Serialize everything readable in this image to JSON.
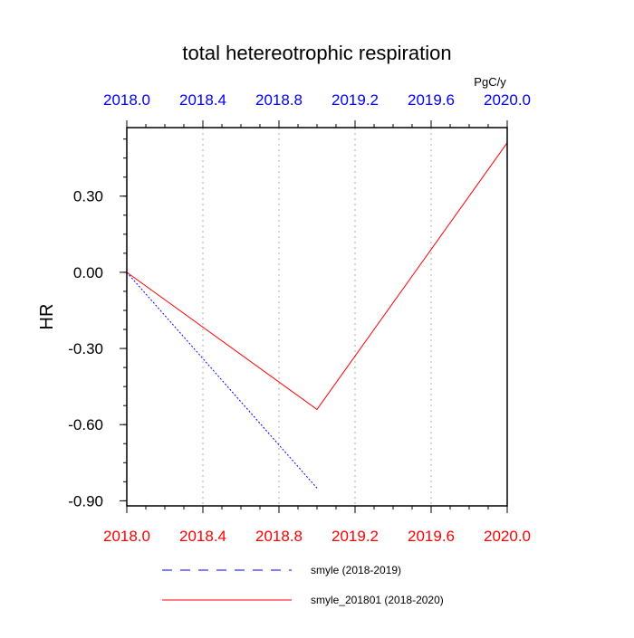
{
  "chart_data": {
    "type": "line",
    "title": "total hetereotrophic respiration",
    "units": "PgC/y",
    "ylabel": "HR",
    "xlim": [
      2018.0,
      2020.0
    ],
    "ylim": [
      -0.92,
      0.57
    ],
    "x_ticks": [
      "2018.0",
      "2018.4",
      "2018.8",
      "2019.2",
      "2019.6",
      "2020.0"
    ],
    "y_ticks": [
      "0.30",
      "0.00",
      "-0.30",
      "-0.60",
      "-0.90"
    ],
    "y_tick_values": [
      0.3,
      0.0,
      -0.3,
      -0.6,
      -0.9
    ],
    "x_tick_values": [
      2018.0,
      2018.4,
      2018.8,
      2019.2,
      2019.6,
      2020.0
    ],
    "grid": "vertical dotted",
    "colors": {
      "top_axis_labels": "#0000ff",
      "bottom_axis_labels": "#ff0000"
    },
    "series": [
      {
        "name": "smyle (2018-2019)",
        "color": "#0000ff",
        "dash": "dashed",
        "x": [
          2018.0,
          2019.0
        ],
        "y": [
          0.0,
          -0.85
        ]
      },
      {
        "name": "smyle_201801 (2018-2020)",
        "color": "#ff0000",
        "dash": "solid",
        "x": [
          2018.0,
          2019.0,
          2020.0
        ],
        "y": [
          0.0,
          -0.54,
          0.51
        ]
      }
    ]
  }
}
